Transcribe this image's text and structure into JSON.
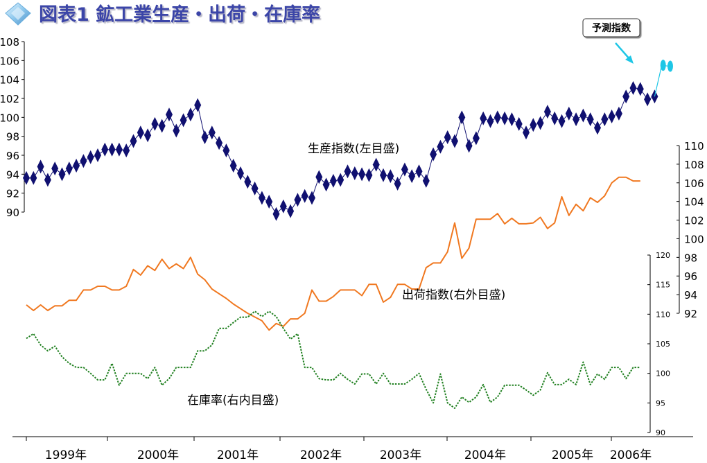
{
  "title": "図表1 鉱工業生産・出荷・在庫率",
  "colors": {
    "title": "#3a44a8",
    "production": "#101070",
    "forecast": "#1ec6e6",
    "shipments": "#f07820",
    "inventory": "#208020",
    "axis": "#000000"
  },
  "labels": {
    "production": "生産指数(左目盛)",
    "shipments": "出荷指数(右外目盛)",
    "inventory": "在庫率(右内目盛)",
    "forecast_callout": "予測指数"
  },
  "chart_data": {
    "type": "line",
    "title": "図表1 鉱工業生産・出荷・在庫率",
    "x_labels": [
      "1999年",
      "2000年",
      "2001年",
      "2002年",
      "2003年",
      "2004年",
      "2005年",
      "2006年"
    ],
    "grid": false,
    "axes": {
      "left": {
        "ticks": [
          "108",
          "106",
          "104",
          "102",
          "100",
          "98",
          "96",
          "94",
          "92",
          "90"
        ],
        "range": [
          90,
          108
        ]
      },
      "right_outer": {
        "ticks": [
          "110",
          "108",
          "106",
          "104",
          "102",
          "100",
          "98",
          "96",
          "94",
          "92"
        ],
        "range": [
          92,
          110
        ]
      },
      "right_inner": {
        "ticks": [
          "120",
          "115",
          "110",
          "105",
          "100",
          "95",
          "90"
        ],
        "range": [
          90,
          120
        ]
      }
    },
    "series": [
      {
        "name": "生産指数(左目盛)",
        "axis": "left",
        "marker": "diamond",
        "values": [
          93.6,
          93.6,
          94.8,
          93.4,
          94.6,
          94.0,
          94.6,
          94.9,
          95.4,
          95.8,
          96.0,
          96.6,
          96.6,
          96.6,
          96.5,
          97.5,
          98.4,
          98.1,
          99.3,
          99.1,
          100.3,
          98.6,
          99.7,
          100.3,
          101.3,
          97.9,
          98.4,
          97.3,
          96.5,
          94.9,
          94.1,
          93.2,
          92.5,
          91.5,
          91.1,
          89.8,
          90.6,
          90.1,
          91.3,
          91.7,
          91.5,
          93.7,
          92.9,
          93.3,
          93.4,
          94.3,
          94.1,
          94.0,
          93.9,
          95.0,
          93.9,
          93.8,
          93.0,
          94.5,
          93.8,
          94.3,
          93.3,
          96.1,
          96.9,
          97.9,
          97.5,
          100.0,
          97.0,
          97.8,
          99.9,
          99.6,
          100.0,
          99.9,
          99.8,
          99.3,
          98.4,
          99.2,
          99.4,
          100.6,
          99.9,
          99.6,
          100.4,
          99.8,
          100.2,
          99.8,
          98.9,
          99.8,
          100.1,
          100.4,
          102.2,
          103.1,
          103.0,
          101.9,
          102.2
        ]
      },
      {
        "name": "予測指数",
        "axis": "left",
        "marker": "circle",
        "values": [
          102.2,
          105.5,
          105.4
        ],
        "start_index": 88
      },
      {
        "name": "出荷指数(右外目盛)",
        "axis": "right_outer",
        "values": [
          92.9,
          92.3,
          92.9,
          92.3,
          92.8,
          92.8,
          93.4,
          93.4,
          94.5,
          94.5,
          94.9,
          94.9,
          94.5,
          94.5,
          94.9,
          96.7,
          96.1,
          97.1,
          96.6,
          97.8,
          96.8,
          97.3,
          96.8,
          98.0,
          96.2,
          95.6,
          94.6,
          94.1,
          93.6,
          93.0,
          92.5,
          92.0,
          91.6,
          91.2,
          90.2,
          90.9,
          90.6,
          91.4,
          91.4,
          92.0,
          94.5,
          93.3,
          93.3,
          93.8,
          94.5,
          94.5,
          94.5,
          93.9,
          95.1,
          95.1,
          93.2,
          93.7,
          95.1,
          95.1,
          94.6,
          94.6,
          96.9,
          97.4,
          97.4,
          98.6,
          101.7,
          97.9,
          99.0,
          102.1,
          102.1,
          102.1,
          102.7,
          101.6,
          102.2,
          101.6,
          101.6,
          101.7,
          102.3,
          101.1,
          101.7,
          104.5,
          102.5,
          103.7,
          103.0,
          104.4,
          103.9,
          104.6,
          106.0,
          106.6,
          106.6,
          106.2,
          106.2
        ]
      },
      {
        "name": "在庫率(右内目盛)",
        "axis": "right_inner",
        "dashed": true,
        "values": [
          105.9,
          106.7,
          104.8,
          103.8,
          104.6,
          102.8,
          101.7,
          101.0,
          101.0,
          100.0,
          98.9,
          98.9,
          101.7,
          98.0,
          100.0,
          100.0,
          100.0,
          99.1,
          101.0,
          98.0,
          99.1,
          101.0,
          101.0,
          101.0,
          103.8,
          103.8,
          104.8,
          107.6,
          107.6,
          108.6,
          109.5,
          109.5,
          110.5,
          109.6,
          110.5,
          109.6,
          107.6,
          105.8,
          106.7,
          101.0,
          101.0,
          99.1,
          98.9,
          98.9,
          100.0,
          99.0,
          98.2,
          99.9,
          99.9,
          98.2,
          100.0,
          98.2,
          98.2,
          98.2,
          99.0,
          100.0,
          97.3,
          95.0,
          99.9,
          95.0,
          94.1,
          96.0,
          95.1,
          96.0,
          98.1,
          95.1,
          96.0,
          98.0,
          98.0,
          98.0,
          97.2,
          96.3,
          97.2,
          100.1,
          98.1,
          98.1,
          99.0,
          98.1,
          101.9,
          98.1,
          99.9,
          99.0,
          101.0,
          101.0,
          99.1,
          101.0,
          101.0
        ]
      }
    ]
  }
}
